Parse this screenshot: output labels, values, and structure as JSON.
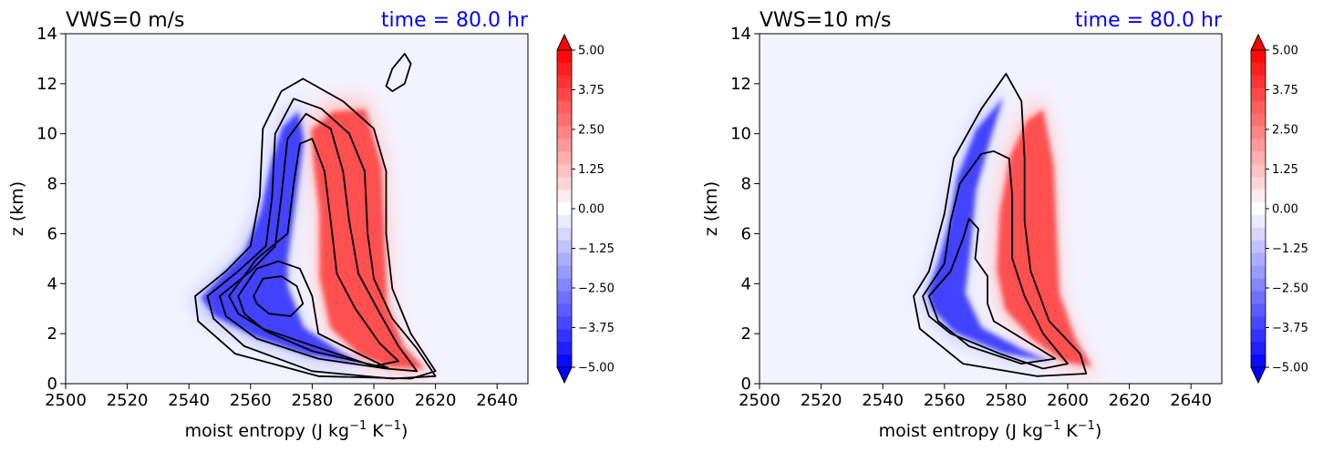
{
  "colorbar_colors": {
    "negative": "#0000ff",
    "center": "#ffffff",
    "positive": "#ff0000",
    "background": "#f3f3ff",
    "contour": "#000000",
    "time_label": "#0000ff"
  },
  "chart_data": [
    {
      "type": "heatmap",
      "title_left": "VWS=0 m/s",
      "title_right": "time = 80.0 hr",
      "xlabel": "moist entropy (J kg",
      "xlabel_exp1": "−1",
      "xlabel_mid": " K",
      "xlabel_exp2": "−1",
      "xlabel_end": ")",
      "ylabel": "z (km)",
      "xlim": [
        2500,
        2650
      ],
      "ylim": [
        0,
        14
      ],
      "xticks": [
        "2500",
        "2520",
        "2540",
        "2560",
        "2580",
        "2600",
        "2620",
        "2640"
      ],
      "yticks": [
        "0",
        "2",
        "4",
        "6",
        "8",
        "10",
        "12",
        "14"
      ],
      "colorbar": {
        "range": [
          -5,
          5
        ],
        "levels": 25,
        "ticks": [
          "5.00",
          "3.75",
          "2.50",
          "1.25",
          "0.00",
          "−1.25",
          "−2.50",
          "−3.75",
          "−5.00"
        ],
        "extend": "both"
      },
      "blue_lobe": [
        [
          2540,
          3.3
        ],
        [
          2548,
          4.3
        ],
        [
          2556,
          5.3
        ],
        [
          2562,
          7.0
        ],
        [
          2566,
          9.2
        ],
        [
          2570,
          10.7
        ],
        [
          2576,
          11.4
        ],
        [
          2578,
          10.2
        ],
        [
          2575,
          7.5
        ],
        [
          2572,
          5.0
        ],
        [
          2572,
          3.8
        ],
        [
          2578,
          2.0
        ],
        [
          2592,
          0.9
        ],
        [
          2600,
          0.4
        ],
        [
          2580,
          0.8
        ],
        [
          2560,
          1.6
        ],
        [
          2545,
          2.5
        ]
      ],
      "red_lobe": [
        [
          2578,
          10.6
        ],
        [
          2586,
          11.4
        ],
        [
          2598,
          11.5
        ],
        [
          2604,
          9.0
        ],
        [
          2605,
          6.0
        ],
        [
          2606,
          3.0
        ],
        [
          2612,
          1.2
        ],
        [
          2620,
          0.2
        ],
        [
          2606,
          0.3
        ],
        [
          2596,
          0.8
        ],
        [
          2585,
          2.0
        ],
        [
          2581,
          4.2
        ],
        [
          2581,
          7.0
        ],
        [
          2579,
          9.0
        ]
      ],
      "contours": [
        [
          [
            2561,
            3.5
          ],
          [
            2564,
            4.2
          ],
          [
            2570,
            4.3
          ],
          [
            2575,
            3.9
          ],
          [
            2577,
            3.2
          ],
          [
            2573,
            2.7
          ],
          [
            2566,
            2.8
          ],
          [
            2562,
            3.2
          ]
        ],
        [
          [
            2556,
            3.5
          ],
          [
            2562,
            4.6
          ],
          [
            2569,
            4.9
          ],
          [
            2576,
            4.6
          ],
          [
            2580,
            3.5
          ],
          [
            2582,
            2.0
          ],
          [
            2595,
            1.2
          ],
          [
            2605,
            0.6
          ],
          [
            2598,
            0.8
          ],
          [
            2580,
            1.3
          ],
          [
            2565,
            2.1
          ],
          [
            2558,
            2.8
          ]
        ],
        [
          [
            2553,
            3.5
          ],
          [
            2562,
            5.0
          ],
          [
            2572,
            6.0
          ],
          [
            2574,
            8.0
          ],
          [
            2576,
            9.6
          ],
          [
            2580,
            9.8
          ],
          [
            2584,
            8.5
          ],
          [
            2586,
            6.5
          ],
          [
            2588,
            4.4
          ],
          [
            2594,
            3.0
          ],
          [
            2602,
            1.6
          ],
          [
            2608,
            0.9
          ],
          [
            2600,
            0.7
          ],
          [
            2583,
            1.4
          ],
          [
            2564,
            2.2
          ],
          [
            2556,
            2.8
          ]
        ],
        [
          [
            2550,
            3.5
          ],
          [
            2560,
            4.5
          ],
          [
            2568,
            5.5
          ],
          [
            2570,
            7.5
          ],
          [
            2572,
            9.8
          ],
          [
            2578,
            10.8
          ],
          [
            2586,
            10.2
          ],
          [
            2590,
            8.5
          ],
          [
            2592,
            6.5
          ],
          [
            2595,
            4.4
          ],
          [
            2602,
            2.8
          ],
          [
            2608,
            1.5
          ],
          [
            2614,
            0.5
          ],
          [
            2604,
            0.6
          ],
          [
            2582,
            1.0
          ],
          [
            2562,
            1.8
          ],
          [
            2552,
            2.7
          ]
        ],
        [
          [
            2546,
            3.5
          ],
          [
            2556,
            4.5
          ],
          [
            2565,
            5.5
          ],
          [
            2567,
            7.5
          ],
          [
            2568,
            10.0
          ],
          [
            2574,
            11.4
          ],
          [
            2583,
            11.0
          ],
          [
            2592,
            10.0
          ],
          [
            2597,
            8.5
          ],
          [
            2598,
            6.0
          ],
          [
            2600,
            4.2
          ],
          [
            2606,
            2.6
          ],
          [
            2614,
            1.4
          ],
          [
            2620,
            0.3
          ],
          [
            2606,
            0.2
          ],
          [
            2580,
            0.5
          ],
          [
            2558,
            1.5
          ],
          [
            2548,
            2.6
          ]
        ],
        [
          [
            2542,
            3.5
          ],
          [
            2552,
            4.5
          ],
          [
            2560,
            5.5
          ],
          [
            2563,
            7.5
          ],
          [
            2564,
            10.2
          ],
          [
            2570,
            11.7
          ],
          [
            2577,
            12.2
          ],
          [
            2590,
            11.3
          ],
          [
            2600,
            10.2
          ],
          [
            2604,
            8.5
          ],
          [
            2604,
            6.0
          ],
          [
            2606,
            3.8
          ],
          [
            2612,
            2.0
          ],
          [
            2620,
            0.5
          ],
          [
            2612,
            0.2
          ],
          [
            2582,
            0.3
          ],
          [
            2555,
            1.2
          ],
          [
            2543,
            2.5
          ]
        ],
        [
          [
            2604,
            11.9
          ],
          [
            2606,
            12.6
          ],
          [
            2610,
            13.2
          ],
          [
            2612,
            12.8
          ],
          [
            2610,
            12.0
          ],
          [
            2606,
            11.7
          ]
        ]
      ]
    },
    {
      "type": "heatmap",
      "title_left": "VWS=10 m/s",
      "title_right": "time = 80.0 hr",
      "xlabel": "moist entropy (J kg",
      "xlabel_exp1": "−1",
      "xlabel_mid": " K",
      "xlabel_exp2": "−1",
      "xlabel_end": ")",
      "ylabel": "z (km)",
      "xlim": [
        2500,
        2650
      ],
      "ylim": [
        0,
        14
      ],
      "xticks": [
        "2500",
        "2520",
        "2540",
        "2560",
        "2580",
        "2600",
        "2620",
        "2640"
      ],
      "yticks": [
        "0",
        "2",
        "4",
        "6",
        "8",
        "10",
        "12",
        "14"
      ],
      "colorbar": {
        "range": [
          -5,
          5
        ],
        "levels": 25,
        "ticks": [
          "5.00",
          "3.75",
          "2.50",
          "1.25",
          "0.00",
          "−1.25",
          "−2.50",
          "−3.75",
          "−5.00"
        ],
        "extend": "both"
      },
      "blue_lobe": [
        [
          2552,
          3.5
        ],
        [
          2556,
          4.8
        ],
        [
          2560,
          6.5
        ],
        [
          2563,
          8.5
        ],
        [
          2570,
          10.6
        ],
        [
          2580,
          12.0
        ],
        [
          2576,
          10.5
        ],
        [
          2570,
          8.0
        ],
        [
          2568,
          5.5
        ],
        [
          2566,
          3.5
        ],
        [
          2572,
          2.0
        ],
        [
          2588,
          1.0
        ],
        [
          2598,
          0.5
        ],
        [
          2580,
          0.9
        ],
        [
          2562,
          1.8
        ],
        [
          2554,
          2.8
        ]
      ],
      "red_lobe": [
        [
          2580,
          9.5
        ],
        [
          2586,
          11.0
        ],
        [
          2592,
          11.5
        ],
        [
          2596,
          9.0
        ],
        [
          2597,
          6.0
        ],
        [
          2598,
          3.5
        ],
        [
          2604,
          1.5
        ],
        [
          2610,
          0.3
        ],
        [
          2600,
          0.5
        ],
        [
          2588,
          1.5
        ],
        [
          2578,
          2.8
        ],
        [
          2575,
          4.5
        ],
        [
          2576,
          7.0
        ]
      ],
      "contours": [
        [
          [
            2555,
            3.5
          ],
          [
            2562,
            4.5
          ],
          [
            2566,
            5.8
          ],
          [
            2568,
            6.6
          ],
          [
            2571,
            6.2
          ],
          [
            2570,
            5.0
          ],
          [
            2574,
            4.3
          ],
          [
            2574,
            3.2
          ],
          [
            2576,
            2.5
          ],
          [
            2588,
            1.6
          ],
          [
            2596,
            1.0
          ],
          [
            2585,
            0.8
          ],
          [
            2568,
            1.5
          ],
          [
            2558,
            2.5
          ]
        ],
        [
          [
            2553,
            3.5
          ],
          [
            2560,
            4.8
          ],
          [
            2562,
            6.5
          ],
          [
            2565,
            8.0
          ],
          [
            2572,
            9.2
          ],
          [
            2576,
            9.3
          ],
          [
            2581,
            9.0
          ],
          [
            2582,
            7.5
          ],
          [
            2582,
            5.0
          ],
          [
            2586,
            3.5
          ],
          [
            2592,
            2.0
          ],
          [
            2600,
            0.8
          ],
          [
            2592,
            0.6
          ],
          [
            2578,
            1.2
          ],
          [
            2562,
            2.0
          ],
          [
            2555,
            2.7
          ]
        ],
        [
          [
            2550,
            3.5
          ],
          [
            2555,
            4.5
          ],
          [
            2560,
            6.8
          ],
          [
            2563,
            9.0
          ],
          [
            2572,
            11.0
          ],
          [
            2580,
            12.4
          ],
          [
            2585,
            11.3
          ],
          [
            2586,
            9.0
          ],
          [
            2586,
            6.5
          ],
          [
            2588,
            4.5
          ],
          [
            2594,
            2.5
          ],
          [
            2604,
            1.2
          ],
          [
            2606,
            0.4
          ],
          [
            2590,
            0.3
          ],
          [
            2566,
            0.8
          ],
          [
            2552,
            2.2
          ]
        ]
      ]
    }
  ]
}
